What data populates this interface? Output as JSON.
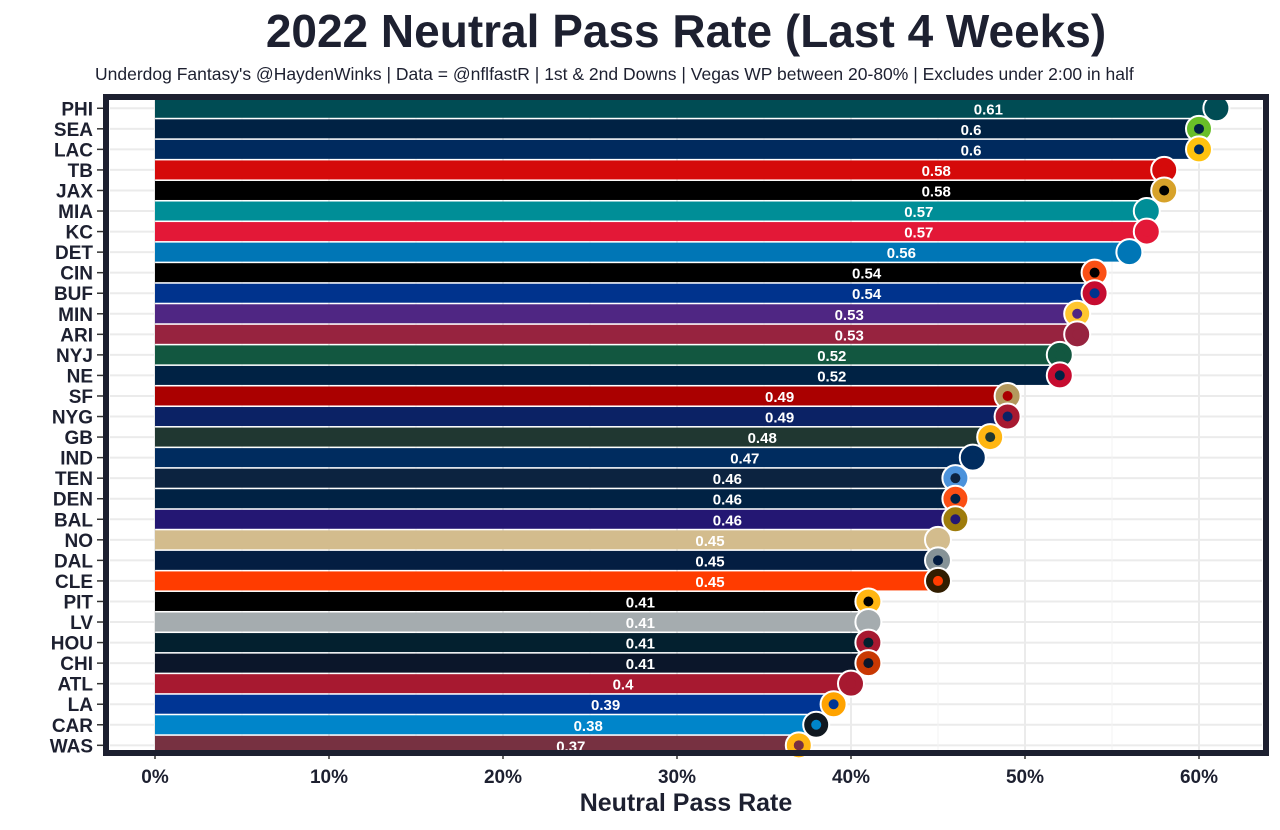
{
  "chart_data": {
    "type": "bar",
    "orientation": "horizontal",
    "title": "2022 Neutral Pass Rate (Last 4 Weeks)",
    "subtitle": "Underdog Fantasy's @HaydenWinks | Data = @nflfastR | 1st & 2nd Downs | Vegas WP between 20-80% | Excludes under 2:00 in half",
    "xlabel": "Neutral Pass Rate",
    "ylabel": "",
    "xlim": [
      0,
      0.64
    ],
    "x_ticks": [
      0,
      0.1,
      0.2,
      0.3,
      0.4,
      0.5,
      0.6
    ],
    "x_tick_labels": [
      "0%",
      "10%",
      "20%",
      "30%",
      "40%",
      "50%",
      "60%"
    ],
    "grid": true,
    "legend": "none",
    "categories": [
      "PHI",
      "SEA",
      "LAC",
      "TB",
      "JAX",
      "MIA",
      "KC",
      "DET",
      "CIN",
      "BUF",
      "MIN",
      "ARI",
      "NYJ",
      "NE",
      "SF",
      "NYG",
      "GB",
      "IND",
      "TEN",
      "DEN",
      "BAL",
      "NO",
      "DAL",
      "CLE",
      "PIT",
      "LV",
      "HOU",
      "CHI",
      "ATL",
      "LA",
      "CAR",
      "WAS"
    ],
    "values": [
      0.61,
      0.6,
      0.6,
      0.58,
      0.58,
      0.57,
      0.57,
      0.56,
      0.54,
      0.54,
      0.53,
      0.53,
      0.52,
      0.52,
      0.49,
      0.49,
      0.48,
      0.47,
      0.46,
      0.46,
      0.46,
      0.45,
      0.45,
      0.45,
      0.41,
      0.41,
      0.41,
      0.41,
      0.4,
      0.39,
      0.38,
      0.37
    ],
    "value_labels": [
      "0.61",
      "0.6",
      "0.6",
      "0.58",
      "0.58",
      "0.57",
      "0.57",
      "0.56",
      "0.54",
      "0.54",
      "0.53",
      "0.53",
      "0.52",
      "0.52",
      "0.49",
      "0.49",
      "0.48",
      "0.47",
      "0.46",
      "0.46",
      "0.46",
      "0.45",
      "0.45",
      "0.45",
      "0.41",
      "0.41",
      "0.41",
      "0.41",
      "0.4",
      "0.39",
      "0.38",
      "0.37"
    ],
    "bar_colors": [
      "#004c54",
      "#002244",
      "#002a5e",
      "#d50a0a",
      "#000000",
      "#008e97",
      "#e31837",
      "#0076b6",
      "#000000",
      "#00338d",
      "#4f2683",
      "#97233f",
      "#125740",
      "#002244",
      "#aa0000",
      "#0b2265",
      "#203731",
      "#002c5f",
      "#0c2340",
      "#002244",
      "#241773",
      "#d3bc8d",
      "#041e42",
      "#ff3c00",
      "#000000",
      "#a5acaf",
      "#03202f",
      "#0b162a",
      "#a71930",
      "#003594",
      "#0085ca",
      "#773141"
    ],
    "logo_colors": [
      "#004c54",
      "#69be28",
      "#ffc20e",
      "#d50a0a",
      "#d7a22a",
      "#008e97",
      "#e31837",
      "#0076b6",
      "#fb4f14",
      "#c60c30",
      "#ffc62f",
      "#97233f",
      "#125740",
      "#c60c30",
      "#b3995d",
      "#a71930",
      "#ffb612",
      "#002c5f",
      "#4b92db",
      "#fb4f14",
      "#9e7c0c",
      "#d3bc8d",
      "#869397",
      "#311d00",
      "#ffb612",
      "#a5acaf",
      "#a71930",
      "#c83803",
      "#a71930",
      "#ffa300",
      "#101820",
      "#ffb612"
    ],
    "value_label_color": "#ffffff"
  }
}
